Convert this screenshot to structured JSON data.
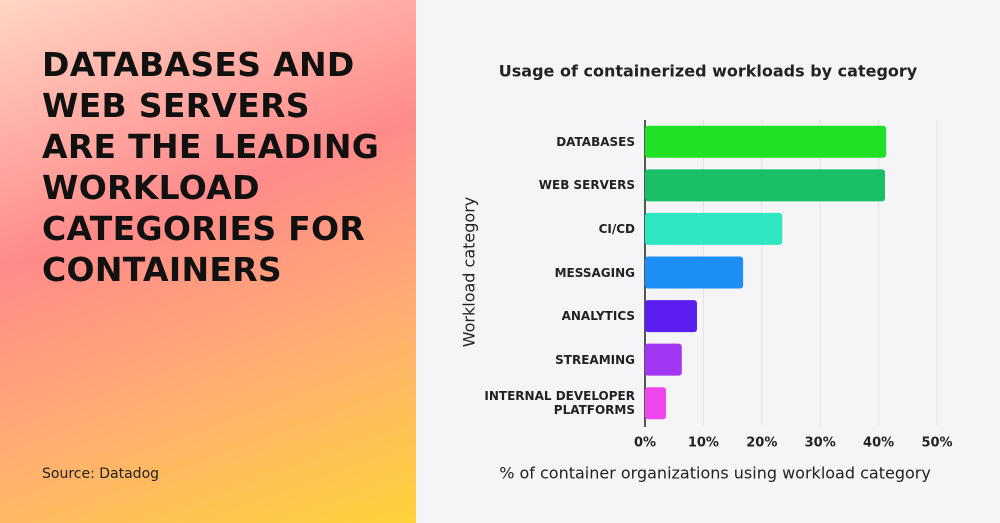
{
  "header": {
    "headline": "DATABASES AND WEB SERVERS ARE THE LEADING WORKLOAD CATEGORIES FOR CONTAINERS",
    "source": "Source: Datadog"
  },
  "chart_data": {
    "type": "bar",
    "orientation": "horizontal",
    "title": "Usage of containerized workloads by category",
    "x_label": "% of container organizations using workload category",
    "y_label": "Workload category",
    "categories": [
      "DATABASES",
      "WEB SERVERS",
      "CI/CD",
      "MESSAGING",
      "ANALYTICS",
      "STREAMING",
      "INTERNAL DEVELOPER PLATFORMS"
    ],
    "values": [
      41.3,
      41.1,
      23.5,
      16.8,
      8.9,
      6.3,
      3.6
    ],
    "colors": [
      "#22e026",
      "#18bf64",
      "#2ee6c0",
      "#1c8ef5",
      "#5a1ff0",
      "#a236f2",
      "#f046ee"
    ],
    "xlim": [
      0,
      50
    ],
    "xticks": [
      {
        "value": 0,
        "label": "0%"
      },
      {
        "value": 10,
        "label": "10%"
      },
      {
        "value": 20,
        "label": "20%"
      },
      {
        "value": 30,
        "label": "30%"
      },
      {
        "value": 40,
        "label": "40%"
      },
      {
        "value": 50,
        "label": "50%"
      }
    ],
    "grid": true
  }
}
